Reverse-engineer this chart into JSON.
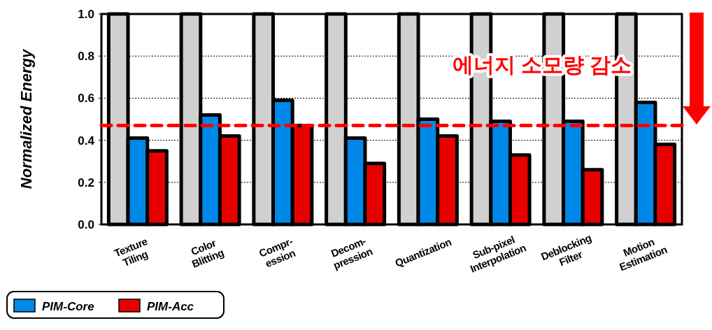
{
  "chart_data": {
    "type": "bar",
    "ylabel": "Normalized Energy",
    "categories": [
      "Texture\nTiling",
      "Color\nBlitting",
      "Compr-\nession",
      "Decom-\npression",
      "Quantization",
      "Sub-pixel\nInterpolation",
      "Deblocking\nFilter",
      "Motion\nEstimation"
    ],
    "series": [
      {
        "color": "#d0d0d0",
        "values": [
          1.0,
          1.0,
          1.0,
          1.0,
          1.0,
          1.0,
          1.0,
          1.0
        ]
      },
      {
        "name": "PIM-Core",
        "color": "#0088e8",
        "values": [
          0.41,
          0.52,
          0.59,
          0.41,
          0.5,
          0.49,
          0.49,
          0.58
        ]
      },
      {
        "name": "PIM-Acc",
        "color": "#e80000",
        "values": [
          0.35,
          0.42,
          0.47,
          0.29,
          0.42,
          0.33,
          0.26,
          0.38
        ]
      }
    ],
    "ylim": [
      0,
      1
    ],
    "yticks": [
      {
        "value": 0,
        "label": "0.0"
      },
      {
        "value": 0.2,
        "label": "0.2"
      },
      {
        "value": 0.4,
        "label": "0.4"
      },
      {
        "value": 0.6,
        "label": "0.6"
      },
      {
        "value": 0.8,
        "label": "0.8"
      },
      {
        "value": 1,
        "label": "1.0"
      }
    ],
    "grid": "y",
    "legend": "bottom left",
    "ref_lines": [
      {
        "axis": "y",
        "value": 0.47,
        "color": "#ff0000",
        "line_style": "dashed"
      }
    ],
    "annotations": [
      "에너지 소모량 감소"
    ]
  }
}
